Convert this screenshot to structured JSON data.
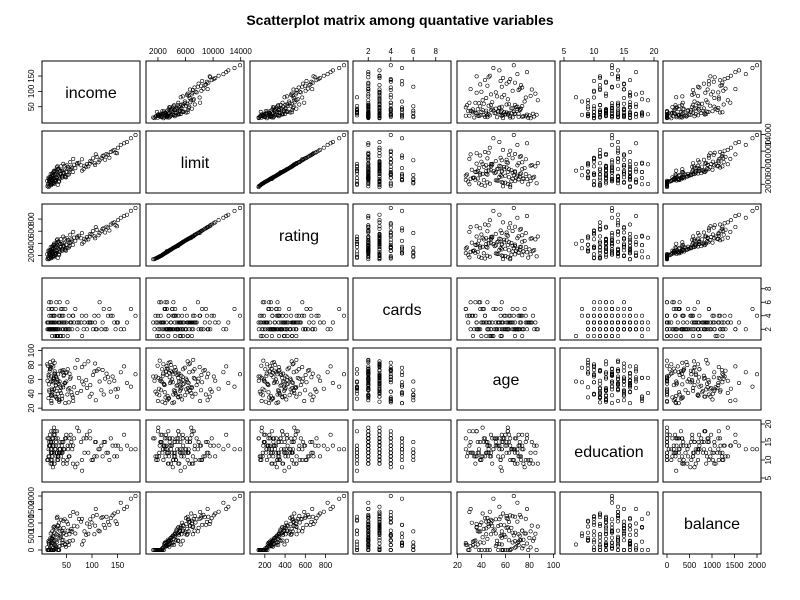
{
  "chart_data": {
    "type": "scatter",
    "title": "Scatterplot matrix among quantative variables",
    "variables": [
      {
        "name": "income",
        "range": [
          10,
          186
        ],
        "ticks": [
          50,
          100,
          150
        ],
        "tick_labels": [
          "50",
          "100",
          "150"
        ]
      },
      {
        "name": "limit",
        "range": [
          850,
          13900
        ],
        "ticks": [
          2000,
          6000,
          10000,
          14000
        ],
        "tick_labels": [
          "2000",
          "6000",
          "10000",
          "14000"
        ]
      },
      {
        "name": "rating",
        "range": [
          93,
          982
        ],
        "ticks": [
          200,
          400,
          600,
          800
        ],
        "tick_labels": [
          "200",
          "400",
          "600",
          "800"
        ]
      },
      {
        "name": "cards",
        "range": [
          1,
          9
        ],
        "ticks": [
          2,
          4,
          6,
          8
        ],
        "tick_labels": [
          "2",
          "4",
          "6",
          "8"
        ]
      },
      {
        "name": "age",
        "range": [
          23,
          98
        ],
        "ticks": [
          20,
          40,
          60,
          80,
          100
        ],
        "tick_labels": [
          "20",
          "40",
          "60",
          "80",
          "100"
        ]
      },
      {
        "name": "education",
        "range": [
          5,
          20
        ],
        "ticks": [
          5,
          10,
          15,
          20
        ],
        "tick_labels": [
          "5",
          "10",
          "15",
          "20"
        ]
      },
      {
        "name": "balance",
        "range": [
          0,
          2000
        ],
        "ticks": [
          0,
          500,
          1000,
          1500,
          2000
        ],
        "tick_labels": [
          "0",
          "500",
          "1000",
          "1500",
          "2000"
        ]
      }
    ],
    "records": [
      [
        14.9,
        3606,
        283,
        2,
        34,
        11,
        333
      ],
      [
        106.0,
        6645,
        483,
        3,
        82,
        15,
        903
      ],
      [
        104.6,
        7075,
        514,
        4,
        71,
        11,
        580
      ],
      [
        148.9,
        9504,
        681,
        3,
        36,
        11,
        964
      ],
      [
        55.9,
        4897,
        357,
        2,
        68,
        16,
        331
      ],
      [
        80.2,
        8047,
        569,
        4,
        77,
        10,
        1151
      ],
      [
        21.0,
        3388,
        259,
        2,
        37,
        12,
        203
      ],
      [
        71.4,
        7114,
        512,
        2,
        87,
        9,
        872
      ],
      [
        15.1,
        3300,
        266,
        5,
        66,
        13,
        279
      ],
      [
        71.1,
        6819,
        491,
        3,
        41,
        19,
        1350
      ],
      [
        63.1,
        8117,
        589,
        4,
        30,
        14,
        1407
      ],
      [
        15.0,
        1311,
        138,
        3,
        64,
        16,
        0
      ],
      [
        80.6,
        5308,
        394,
        1,
        57,
        7,
        204
      ],
      [
        43.7,
        6922,
        511,
        1,
        49,
        9,
        1081
      ],
      [
        19.1,
        3291,
        269,
        2,
        75,
        13,
        148
      ],
      [
        20.1,
        2525,
        200,
        3,
        57,
        15,
        0
      ],
      [
        43.8,
        4612,
        344,
        4,
        73,
        10,
        368
      ],
      [
        36.5,
        3900,
        300,
        2,
        57,
        13,
        455
      ],
      [
        22.3,
        4320,
        330,
        2,
        45,
        12,
        412
      ],
      [
        28.9,
        2970,
        235,
        5,
        52,
        14,
        150
      ],
      [
        58.2,
        5600,
        420,
        3,
        63,
        17,
        710
      ],
      [
        33.0,
        1850,
        160,
        1,
        40,
        11,
        0
      ],
      [
        26.4,
        5100,
        380,
        3,
        68,
        9,
        640
      ],
      [
        47.5,
        3750,
        290,
        2,
        55,
        16,
        220
      ],
      [
        19.5,
        2200,
        180,
        6,
        38,
        12,
        0
      ],
      [
        38.2,
        4400,
        335,
        4,
        72,
        15,
        530
      ],
      [
        53.1,
        6100,
        455,
        2,
        46,
        13,
        960
      ],
      [
        12.4,
        2800,
        220,
        3,
        81,
        10,
        95
      ],
      [
        31.6,
        3500,
        270,
        1,
        33,
        18,
        310
      ],
      [
        24.8,
        4050,
        310,
        2,
        60,
        14,
        490
      ],
      [
        67.2,
        5900,
        440,
        5,
        76,
        8,
        610
      ],
      [
        35.9,
        2650,
        210,
        3,
        29,
        12,
        0
      ],
      [
        29.3,
        4700,
        355,
        2,
        51,
        16,
        760
      ],
      [
        16.7,
        1650,
        150,
        4,
        43,
        11,
        0
      ],
      [
        44.5,
        5400,
        405,
        3,
        65,
        13,
        820
      ],
      [
        27.1,
        3150,
        245,
        2,
        71,
        17,
        180
      ],
      [
        51.8,
        4250,
        325,
        6,
        39,
        10,
        280
      ],
      [
        22.9,
        2350,
        190,
        3,
        58,
        15,
        0
      ],
      [
        39.4,
        6350,
        470,
        1,
        48,
        12,
        1120
      ],
      [
        18.3,
        3800,
        290,
        2,
        84,
        14,
        430
      ],
      [
        62.7,
        4950,
        375,
        4,
        35,
        9,
        350
      ],
      [
        25.6,
        2050,
        170,
        2,
        62,
        19,
        0
      ],
      [
        34.2,
        5750,
        430,
        3,
        54,
        11,
        890
      ],
      [
        20.8,
        3050,
        240,
        5,
        27,
        13,
        260
      ],
      [
        48.9,
        3650,
        280,
        2,
        69,
        16,
        120
      ],
      [
        30.5,
        4500,
        340,
        1,
        44,
        12,
        580
      ],
      [
        13.8,
        1950,
        165,
        3,
        79,
        10,
        0
      ],
      [
        41.7,
        5250,
        395,
        2,
        37,
        15,
        700
      ],
      [
        23.4,
        4150,
        318,
        4,
        56,
        8,
        520
      ],
      [
        57.3,
        7350,
        540,
        3,
        61,
        14,
        1260
      ],
      [
        17.6,
        2600,
        205,
        2,
        74,
        17,
        60
      ],
      [
        36.8,
        3350,
        260,
        6,
        31,
        12,
        150
      ],
      [
        45.1,
        4800,
        362,
        3,
        66,
        13,
        640
      ],
      [
        21.7,
        2150,
        178,
        1,
        47,
        11,
        0
      ],
      [
        32.9,
        5600,
        418,
        2,
        59,
        16,
        920
      ],
      [
        26.9,
        3550,
        275,
        4,
        83,
        9,
        340
      ],
      [
        59.6,
        6250,
        465,
        3,
        42,
        15,
        780
      ],
      [
        15.8,
        2900,
        228,
        2,
        53,
        14,
        210
      ],
      [
        42.3,
        4050,
        312,
        5,
        70,
        12,
        260
      ],
      [
        28.4,
        4950,
        372,
        2,
        36,
        18,
        830
      ],
      [
        19.9,
        1750,
        155,
        3,
        64,
        10,
        0
      ],
      [
        37.7,
        5150,
        388,
        1,
        50,
        13,
        720
      ],
      [
        24.3,
        3250,
        252,
        3,
        78,
        16,
        240
      ],
      [
        54.6,
        4350,
        332,
        4,
        28,
        11,
        190
      ],
      [
        31.2,
        6050,
        452,
        2,
        61,
        12,
        1180
      ],
      [
        16.2,
        2450,
        195,
        6,
        45,
        15,
        0
      ],
      [
        40.8,
        3850,
        296,
        3,
        72,
        14,
        360
      ],
      [
        22.1,
        4600,
        348,
        2,
        39,
        10,
        690
      ],
      [
        49.7,
        5050,
        380,
        3,
        57,
        17,
        560
      ],
      [
        27.8,
        2750,
        218,
        1,
        68,
        13,
        90
      ],
      [
        35.4,
        5500,
        412,
        4,
        32,
        12,
        1010
      ],
      [
        18.9,
        3450,
        266,
        2,
        75,
        9,
        380
      ],
      [
        64.9,
        6700,
        495,
        3,
        49,
        16,
        900
      ],
      [
        23.7,
        2250,
        185,
        2,
        86,
        14,
        0
      ],
      [
        39.1,
        4500,
        343,
        5,
        41,
        11,
        470
      ],
      [
        29.8,
        3700,
        285,
        2,
        63,
        15,
        360
      ],
      [
        46.3,
        6450,
        478,
        3,
        55,
        13,
        1140
      ],
      [
        20.3,
        2000,
        168,
        4,
        30,
        18,
        0
      ],
      [
        33.6,
        4200,
        322,
        2,
        67,
        10,
        540
      ],
      [
        26.1,
        5300,
        398,
        3,
        46,
        12,
        870
      ],
      [
        12.9,
        1500,
        140,
        2,
        58,
        16,
        0
      ],
      [
        52.4,
        5650,
        425,
        1,
        74,
        14,
        720
      ],
      [
        30.1,
        3100,
        242,
        6,
        35,
        11,
        120
      ],
      [
        43.9,
        4850,
        366,
        2,
        52,
        15,
        610
      ],
      [
        21.4,
        3900,
        300,
        3,
        80,
        9,
        450
      ],
      [
        61.2,
        5950,
        445,
        2,
        38,
        13,
        680
      ],
      [
        25.2,
        2400,
        192,
        4,
        60,
        17,
        0
      ],
      [
        37.1,
        5200,
        390,
        3,
        44,
        12,
        800
      ],
      [
        17.1,
        3200,
        250,
        2,
        71,
        14,
        310
      ],
      [
        47.8,
        4100,
        315,
        5,
        27,
        16,
        200
      ],
      [
        32.3,
        6300,
        468,
        1,
        56,
        10,
        1230
      ],
      [
        28.7,
        2700,
        215,
        3,
        65,
        13,
        40
      ],
      [
        55.8,
        5400,
        404,
        2,
        48,
        11,
        580
      ],
      [
        19.2,
        4450,
        338,
        3,
        77,
        15,
        610
      ],
      [
        41.2,
        3550,
        275,
        4,
        33,
        12,
        180
      ],
      [
        24.6,
        4950,
        372,
        2,
        62,
        18,
        840
      ],
      [
        34.8,
        2850,
        225,
        3,
        54,
        14,
        0
      ],
      [
        50.5,
        6550,
        485,
        2,
        70,
        9,
        1050
      ],
      [
        22.6,
        3000,
        236,
        5,
        42,
        16,
        270
      ],
      [
        118.4,
        8250,
        598,
        2,
        45,
        14,
        1190
      ],
      [
        131.2,
        9100,
        660,
        4,
        63,
        12,
        1040
      ],
      [
        96.7,
        7600,
        555,
        3,
        52,
        16,
        1140
      ],
      [
        156.3,
        11500,
        820,
        2,
        70,
        13,
        1750
      ],
      [
        122.9,
        8950,
        650,
        5,
        39,
        15,
        930
      ],
      [
        143.5,
        10300,
        745,
        3,
        58,
        11,
        1350
      ],
      [
        90.1,
        6900,
        505,
        2,
        48,
        17,
        980
      ],
      [
        112.6,
        7300,
        535,
        4,
        74,
        13,
        720
      ],
      [
        168.4,
        12200,
        872,
        3,
        55,
        14,
        1600
      ],
      [
        101.9,
        8300,
        603,
        2,
        66,
        10,
        1250
      ],
      [
        136.7,
        9800,
        710,
        4,
        43,
        16,
        1180
      ],
      [
        85.3,
        6450,
        475,
        3,
        81,
        12,
        690
      ],
      [
        125.5,
        7900,
        578,
        2,
        61,
        15,
        820
      ],
      [
        176.1,
        13100,
        935,
        5,
        50,
        13,
        1900
      ],
      [
        95.4,
        7000,
        512,
        3,
        36,
        18,
        850
      ],
      [
        109.2,
        8600,
        625,
        2,
        72,
        11,
        1300
      ],
      [
        150.8,
        10800,
        782,
        3,
        47,
        14,
        1420
      ],
      [
        88.7,
        6200,
        458,
        4,
        59,
        16,
        560
      ],
      [
        128.3,
        9300,
        674,
        2,
        68,
        12,
        1230
      ],
      [
        78.6,
        6600,
        485,
        3,
        44,
        15,
        1050
      ],
      [
        114.8,
        7800,
        570,
        6,
        57,
        13,
        690
      ],
      [
        162.7,
        11900,
        850,
        2,
        78,
        17,
        1520
      ],
      [
        99.1,
        7450,
        545,
        3,
        40,
        10,
        1020
      ],
      [
        140.2,
        10100,
        730,
        4,
        64,
        14,
        1280
      ],
      [
        83.5,
        5600,
        418,
        2,
        53,
        16,
        340
      ],
      [
        120.6,
        8800,
        638,
        3,
        73,
        11,
        1220
      ],
      [
        107.4,
        9200,
        668,
        2,
        31,
        15,
        1520
      ],
      [
        185.0,
        13900,
        982,
        4,
        67,
        13,
        1999
      ],
      [
        92.8,
        6300,
        465,
        3,
        85,
        12,
        600
      ],
      [
        146.1,
        9600,
        698,
        2,
        46,
        14,
        1060
      ],
      [
        74.3,
        7200,
        526,
        3,
        62,
        18,
        1150
      ],
      [
        133.9,
        8400,
        612,
        5,
        56,
        10,
        930
      ]
    ]
  },
  "colors": {
    "marker": "#000000",
    "background": "#ffffff",
    "frame": "#000000"
  }
}
